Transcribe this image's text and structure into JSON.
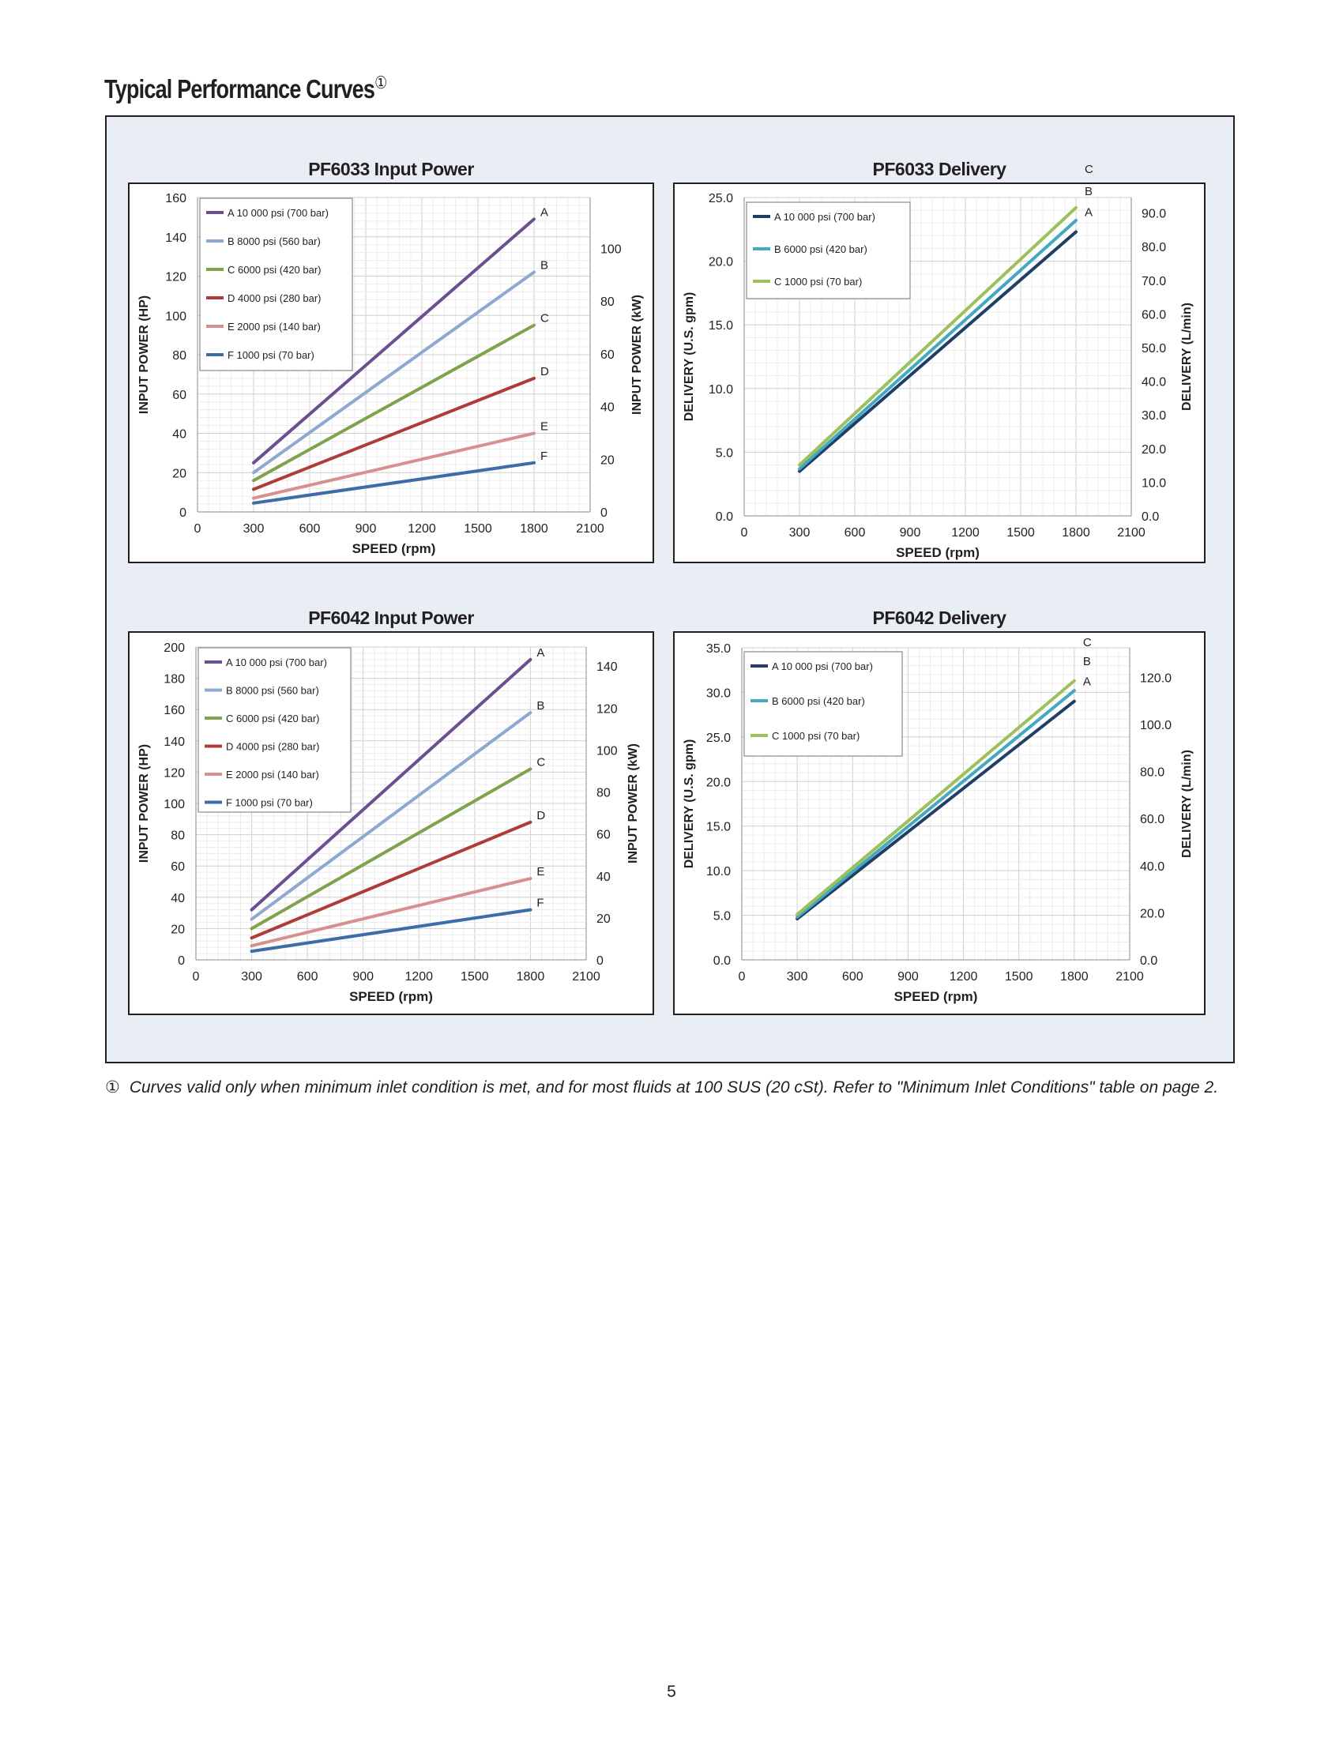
{
  "page": {
    "title": "Typical Performance Curves",
    "title_mark": "①",
    "footnote_mark": "①",
    "footnote": "Curves valid only when minimum inlet condition is met, and for most fluids at 100 SUS (20 cSt). Refer to \"Minimum Inlet Conditions\" table on page 2.",
    "page_number": "5"
  },
  "chart_data": [
    {
      "type": "line",
      "title": "PF6033 Input Power",
      "xlabel": "SPEED (rpm)",
      "ylabel": "INPUT POWER (HP)",
      "y2label": "INPUT POWER (kW)",
      "xlim": [
        0,
        2100
      ],
      "xticks": [
        "0",
        "300",
        "600",
        "900",
        "1200",
        "1500",
        "1800",
        "2100"
      ],
      "ylim": [
        0,
        160
      ],
      "yticks": [
        "0",
        "20",
        "40",
        "60",
        "80",
        "100",
        "120",
        "140",
        "160"
      ],
      "y2lim": [
        0,
        119.3
      ],
      "y2ticks": [
        "0",
        "20",
        "40",
        "60",
        "80",
        "100"
      ],
      "legend": "top-left",
      "grid": true,
      "series": [
        {
          "name": "A 10 000 psi (700 bar)",
          "end_label": "A",
          "color": "#6b4f91",
          "x": [
            300,
            1800
          ],
          "y": [
            25,
            149
          ]
        },
        {
          "name": "B 8000 psi (560 bar)",
          "end_label": "B",
          "color": "#8ea9d0",
          "x": [
            300,
            1800
          ],
          "y": [
            20,
            122
          ]
        },
        {
          "name": "C 6000 psi (420 bar)",
          "end_label": "C",
          "color": "#7ea34a",
          "x": [
            300,
            1800
          ],
          "y": [
            16,
            95
          ]
        },
        {
          "name": "D 4000 psi (280 bar)",
          "end_label": "D",
          "color": "#b03c3a",
          "x": [
            300,
            1800
          ],
          "y": [
            11.5,
            68
          ]
        },
        {
          "name": "E 2000 psi (140 bar)",
          "end_label": "E",
          "color": "#d79090",
          "x": [
            300,
            1800
          ],
          "y": [
            7,
            40
          ]
        },
        {
          "name": "F 1000 psi (70 bar)",
          "end_label": "F",
          "color": "#3d6da6",
          "x": [
            300,
            1800
          ],
          "y": [
            4.5,
            25
          ]
        }
      ]
    },
    {
      "type": "line",
      "title": "PF6033 Delivery",
      "xlabel": "SPEED (rpm)",
      "ylabel": "DELIVERY (U.S. gpm)",
      "y2label": "DELIVERY (L/min)",
      "xlim": [
        0,
        2100
      ],
      "xticks": [
        "0",
        "300",
        "600",
        "900",
        "1200",
        "1500",
        "1800",
        "2100"
      ],
      "ylim": [
        0,
        25
      ],
      "yticks": [
        "0.0",
        "5.0",
        "10.0",
        "15.0",
        "20.0",
        "25.0"
      ],
      "y2lim": [
        0,
        94.6
      ],
      "y2ticks": [
        "0.0",
        "10.0",
        "20.0",
        "30.0",
        "40.0",
        "50.0",
        "60.0",
        "70.0",
        "80.0",
        "90.0"
      ],
      "legend": "top-left",
      "grid": true,
      "series": [
        {
          "name": "A 10 000 psi (700 bar)",
          "end_label": "A",
          "color": "#1f3f66",
          "x": [
            300,
            1800
          ],
          "y": [
            3.5,
            22.3
          ]
        },
        {
          "name": "B 6000 psi (420 bar)",
          "end_label": "B",
          "color": "#44a8c0",
          "x": [
            300,
            1800
          ],
          "y": [
            3.7,
            23.2
          ]
        },
        {
          "name": "C 1000 psi (70 bar)",
          "end_label": "C",
          "color": "#9cc05a",
          "x": [
            300,
            1800
          ],
          "y": [
            4.0,
            24.2
          ]
        }
      ]
    },
    {
      "type": "line",
      "title": "PF6042 Input Power",
      "xlabel": "SPEED (rpm)",
      "ylabel": "INPUT POWER (HP)",
      "y2label": "INPUT POWER (kW)",
      "xlim": [
        0,
        2100
      ],
      "xticks": [
        "0",
        "300",
        "600",
        "900",
        "1200",
        "1500",
        "1800",
        "2100"
      ],
      "ylim": [
        0,
        200
      ],
      "yticks": [
        "0",
        "20",
        "40",
        "60",
        "80",
        "100",
        "120",
        "140",
        "160",
        "180",
        "200"
      ],
      "y2lim": [
        0,
        149.1
      ],
      "y2ticks": [
        "0",
        "20",
        "40",
        "60",
        "80",
        "100",
        "120",
        "140"
      ],
      "legend": "top-left",
      "grid": true,
      "series": [
        {
          "name": "A 10 000 psi (700 bar)",
          "end_label": "A",
          "color": "#6b4f91",
          "x": [
            300,
            1800
          ],
          "y": [
            32,
            192
          ]
        },
        {
          "name": "B 8000 psi (560 bar)",
          "end_label": "B",
          "color": "#8ea9d0",
          "x": [
            300,
            1800
          ],
          "y": [
            26,
            158
          ]
        },
        {
          "name": "C 6000 psi (420 bar)",
          "end_label": "C",
          "color": "#7ea34a",
          "x": [
            300,
            1800
          ],
          "y": [
            20,
            122
          ]
        },
        {
          "name": "D 4000 psi (280 bar)",
          "end_label": "D",
          "color": "#b03c3a",
          "x": [
            300,
            1800
          ],
          "y": [
            14,
            88
          ]
        },
        {
          "name": "E 2000 psi (140 bar)",
          "end_label": "E",
          "color": "#d79090",
          "x": [
            300,
            1800
          ],
          "y": [
            9,
            52
          ]
        },
        {
          "name": "F 1000 psi (70 bar)",
          "end_label": "F",
          "color": "#3d6da6",
          "x": [
            300,
            1800
          ],
          "y": [
            5.5,
            32
          ]
        }
      ]
    },
    {
      "type": "line",
      "title": "PF6042 Delivery",
      "xlabel": "SPEED (rpm)",
      "ylabel": "DELIVERY (U.S. gpm)",
      "y2label": "DELIVERY (L/min)",
      "xlim": [
        0,
        2100
      ],
      "xticks": [
        "0",
        "300",
        "600",
        "900",
        "1200",
        "1500",
        "1800",
        "2100"
      ],
      "ylim": [
        0,
        35
      ],
      "yticks": [
        "0.0",
        "5.0",
        "10.0",
        "15.0",
        "20.0",
        "25.0",
        "30.0",
        "35.0"
      ],
      "y2lim": [
        0,
        132.5
      ],
      "y2ticks": [
        "0.0",
        "20.0",
        "40.0",
        "60.0",
        "80.0",
        "100.0",
        "120.0"
      ],
      "legend": "top-left",
      "grid": true,
      "series": [
        {
          "name": "A 10 000 psi (700 bar)",
          "end_label": "A",
          "color": "#1f3f66",
          "x": [
            300,
            1800
          ],
          "y": [
            4.6,
            29.0
          ]
        },
        {
          "name": "B 6000 psi (420 bar)",
          "end_label": "B",
          "color": "#44a8c0",
          "x": [
            300,
            1800
          ],
          "y": [
            4.8,
            30.2
          ]
        },
        {
          "name": "C 1000 psi (70 bar)",
          "end_label": "C",
          "color": "#9cc05a",
          "x": [
            300,
            1800
          ],
          "y": [
            5.1,
            31.3
          ]
        }
      ]
    }
  ]
}
